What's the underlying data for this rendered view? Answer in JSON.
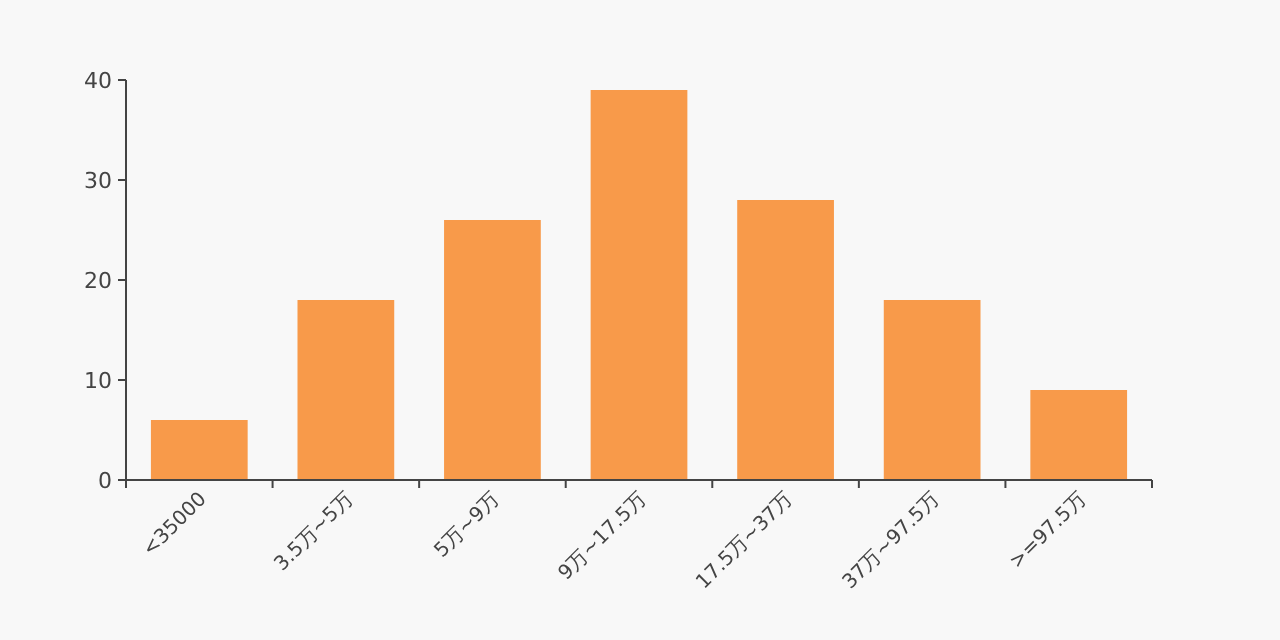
{
  "chart_data": {
    "type": "bar",
    "categories": [
      "<35000",
      "3.5万~5万",
      "5万~9万",
      "9万~17.5万",
      "17.5万~37万",
      "37万~97.5万",
      ">=97.5万"
    ],
    "values": [
      6,
      18,
      26,
      39,
      28,
      18,
      9
    ],
    "color": "#f89a4a",
    "ylim": [
      0,
      40
    ],
    "yticks": [
      0,
      10,
      20,
      30,
      40
    ],
    "grid": false
  }
}
